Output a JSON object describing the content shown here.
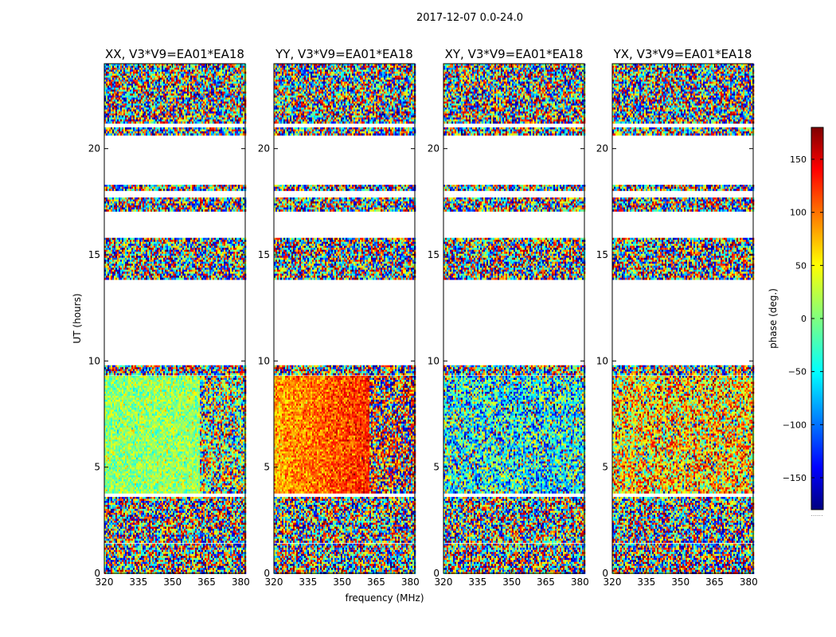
{
  "figure_title": "2017-12-07 0.0-24.0",
  "chart_data": {
    "type": "heatmap",
    "suptitle": "2017-12-07 0.0-24.0",
    "xlabel": "frequency (MHz)",
    "ylabel": "UT (hours)",
    "xlim": [
      320,
      382
    ],
    "ylim": [
      0,
      24
    ],
    "xticks": [
      320,
      335,
      350,
      365,
      380
    ],
    "yticks": [
      0,
      5,
      10,
      15,
      20
    ],
    "colormap": "jet",
    "colorbar": {
      "label": "phase (deg.)",
      "range": [
        -180,
        180
      ],
      "ticks": [
        150,
        100,
        50,
        0,
        -50,
        -100,
        -150
      ],
      "tick_labels": [
        "150",
        "100",
        "50",
        "0",
        "−50",
        "−100",
        "−150"
      ],
      "footer": "......"
    },
    "data_time_bands_hours": [
      [
        0.0,
        1.1
      ],
      [
        1.2,
        1.4
      ],
      [
        1.5,
        3.6
      ],
      [
        3.8,
        9.3
      ],
      [
        9.4,
        9.8
      ],
      [
        13.9,
        15.8
      ],
      [
        17.1,
        17.7
      ],
      [
        18.1,
        18.3
      ],
      [
        20.7,
        21.0
      ],
      [
        21.2,
        24.0
      ]
    ],
    "panels": [
      {
        "title": "XX, V3*V9=EA01*EA18",
        "pol": "XX",
        "mean_phase_deg": 10,
        "freq_slope_deg_per_mhz": 0.15
      },
      {
        "title": "YY, V3*V9=EA01*EA18",
        "pol": "YY",
        "mean_phase_deg": 110,
        "freq_slope_deg_per_mhz": 1.2
      },
      {
        "title": "XY, V3*V9=EA01*EA18",
        "pol": "XY",
        "mean_phase_deg": -40,
        "freq_slope_deg_per_mhz": 0.0
      },
      {
        "title": "YX, V3*V9=EA01*EA18",
        "pol": "YX",
        "mean_phase_deg": 60,
        "freq_slope_deg_per_mhz": 0.0
      }
    ]
  }
}
